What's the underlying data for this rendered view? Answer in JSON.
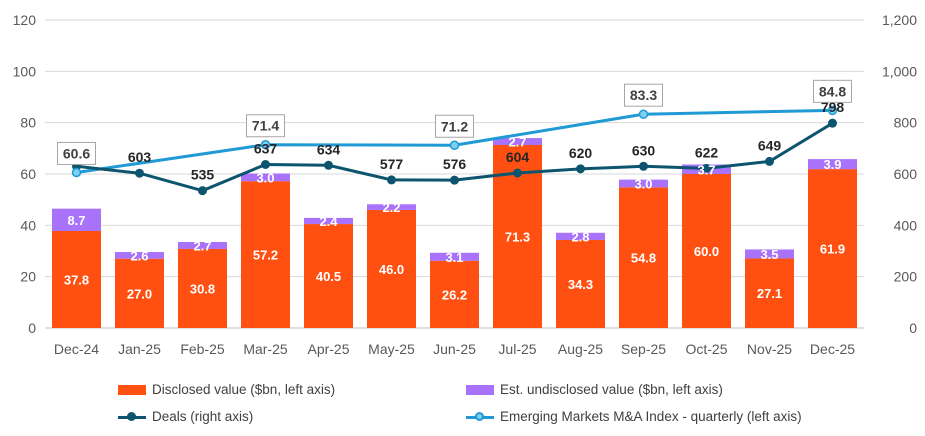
{
  "chart_data": {
    "type": "bar",
    "categories": [
      "Dec-24",
      "Jan-25",
      "Feb-25",
      "Mar-25",
      "Apr-25",
      "May-25",
      "Jun-25",
      "Jul-25",
      "Aug-25",
      "Sep-25",
      "Oct-25",
      "Nov-25",
      "Dec-25"
    ],
    "left_axis": {
      "ylim": [
        0,
        120
      ],
      "ticks": [
        "0",
        "20",
        "40",
        "60",
        "80",
        "100",
        "120"
      ]
    },
    "right_axis": {
      "ylim": [
        0,
        1200
      ],
      "ticks": [
        "0",
        "200",
        "400",
        "600",
        "800",
        "1,000",
        "1,200"
      ]
    },
    "grid": true,
    "legend_position": "bottom",
    "series": [
      {
        "name": "Disclosed value ($bn, left axis)",
        "kind": "stacked-bar",
        "axis": "left",
        "color": "#FF5012",
        "values": [
          37.8,
          27.0,
          30.8,
          57.2,
          40.5,
          46.0,
          26.2,
          71.3,
          34.3,
          54.8,
          60.0,
          27.1,
          61.9
        ],
        "labels": [
          "37.8",
          "27.0",
          "30.8",
          "57.2",
          "40.5",
          "46.0",
          "26.2",
          "71.3",
          "34.3",
          "54.8",
          "60.0",
          "27.1",
          "61.9"
        ]
      },
      {
        "name": "Est. undisclosed value ($bn, left axis)",
        "kind": "stacked-bar",
        "axis": "left",
        "color": "#A872FB",
        "values": [
          8.7,
          2.6,
          2.7,
          3.0,
          2.4,
          2.2,
          3.1,
          2.7,
          2.8,
          3.0,
          3.7,
          3.5,
          3.9
        ],
        "labels": [
          "8.7",
          "2.6",
          "2.7",
          "3.0",
          "2.4",
          "2.2",
          "3.1",
          "2.7",
          "2.8",
          "3.0",
          "3.7",
          "3.5",
          "3.9"
        ]
      },
      {
        "name": "Deals (right axis)",
        "kind": "line",
        "axis": "right",
        "color": "#0D546F",
        "values": [
          630,
          603,
          535,
          637,
          634,
          577,
          576,
          604,
          620,
          630,
          622,
          649,
          798
        ],
        "labels": [
          "",
          "603",
          "535",
          "637",
          "634",
          "577",
          "576",
          "604",
          "620",
          "630",
          "622",
          "649",
          "798"
        ]
      },
      {
        "name": "Emerging Markets M&A Index - quarterly (left axis)",
        "kind": "line",
        "axis": "left",
        "color": "#1F9AD6",
        "values": [
          60.6,
          null,
          null,
          71.4,
          null,
          null,
          71.2,
          null,
          null,
          83.3,
          null,
          null,
          84.8
        ],
        "labels": [
          "60.6",
          "",
          "",
          "71.4",
          "",
          "",
          "71.2",
          "",
          "",
          "83.3",
          "",
          "",
          "84.8"
        ]
      }
    ]
  },
  "legend": {
    "disclosed": "Disclosed value ($bn, left axis)",
    "undisclosed": "Est. undisclosed value ($bn, left axis)",
    "deals": "Deals (right axis)",
    "index": "Emerging Markets M&A Index - quarterly (left axis)"
  },
  "colors": {
    "disclosed": "#FF5012",
    "undisclosed": "#A872FB",
    "deals": "#0D546F",
    "index": "#1F9AD6",
    "index_marker_fill": "#7FD0F0",
    "grid": "#D9D9D9"
  }
}
